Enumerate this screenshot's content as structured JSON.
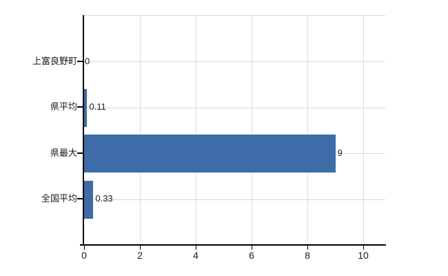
{
  "chart_data": {
    "type": "bar",
    "orientation": "horizontal",
    "categories": [
      "上富良野町",
      "県平均",
      "県最大",
      "全国平均"
    ],
    "values": [
      0,
      0.11,
      9,
      0.33
    ],
    "value_labels": [
      "0",
      "0.11",
      "9",
      "0.33"
    ],
    "x_tick_labels": [
      "0",
      "2",
      "4",
      "6",
      "8",
      "10"
    ],
    "x_tick_values": [
      0,
      2,
      4,
      6,
      8,
      10
    ],
    "xlim": [
      0,
      10.8
    ],
    "grid": true,
    "legend_visible": false,
    "colors": {
      "bar": "#3d6ca6",
      "grid_horizontal": "#d5dad5",
      "grid_vertical": "#d9ddd9",
      "axis": "#000000",
      "text": "#1a1a1a",
      "background": "#ffffff"
    }
  }
}
